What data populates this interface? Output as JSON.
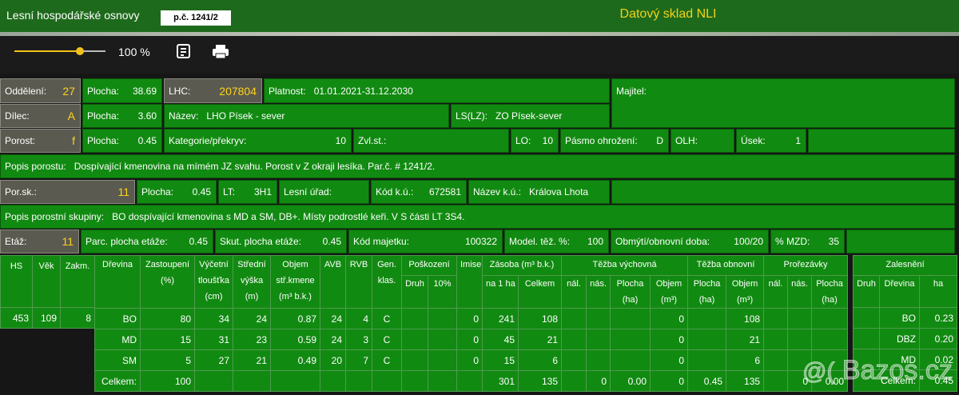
{
  "header": {
    "title": "Lesní hospodářské osnovy",
    "parcel": "p.č. 1241/2",
    "app": "Datový sklad NLI"
  },
  "toolbar": {
    "zoom": "100 %"
  },
  "form": {
    "rows": [
      [
        {
          "label": "Oddělení:",
          "value": "27"
        },
        {
          "label": "Plocha:",
          "value": "38.69"
        },
        {
          "label": "LHC:",
          "value": "207804"
        },
        {
          "label": "Platnost:",
          "value": "01.01.2021-31.12.2030"
        },
        {
          "label": "Majitel:"
        }
      ],
      [
        {
          "label": "Dílec:",
          "value": "A"
        },
        {
          "label": "Plocha:",
          "value": "3.60"
        },
        {
          "label": "Název:",
          "value": "LHO Písek - sever"
        },
        {
          "label": "LS(LZ):",
          "value": "ZO Písek-sever"
        }
      ],
      [
        {
          "label": "Porost:",
          "value": "f"
        },
        {
          "label": "Plocha:",
          "value": "0.45"
        },
        {
          "label": "Kategorie/překryv:",
          "value": "10"
        },
        {
          "label": "Zvl.st.:"
        },
        {
          "label": "LO:",
          "value": "10"
        },
        {
          "label": "Pásmo ohrožení:",
          "value": "D"
        },
        {
          "label": "OLH:"
        },
        {
          "label": "Úsek:",
          "value": "1"
        }
      ],
      [
        {
          "label": "Popis porostu:",
          "value": "Dospívající kmenovina na mímém JZ svahu. Porost v Z okraji lesíka. Par.č. # 1241/2."
        }
      ],
      [
        {
          "label": "Por.sk.:",
          "value": "11"
        },
        {
          "label": "Plocha:",
          "value": "0.45"
        },
        {
          "label": "LT:",
          "value": "3H1"
        },
        {
          "label": "Lesní úřad:"
        },
        {
          "label": "Kód k.ú.:",
          "value": "672581"
        },
        {
          "label": "Název k.ú.:",
          "value": "Králova Lhota"
        }
      ],
      [
        {
          "label": "Popis porostní skupiny:",
          "value": "BO dospívající kmenovina s MD a SM, DB+. Místy podrostlé keři. V S části LT 3S4."
        }
      ],
      [
        {
          "label": "Etáž:",
          "value": "11"
        },
        {
          "label": "Parc. plocha etáže:",
          "value": "0.45"
        },
        {
          "label": "Skut. plocha etáže:",
          "value": "0.45"
        },
        {
          "label": "Kód majetku:",
          "value": "100322"
        },
        {
          "label": "Model. těž. %:",
          "value": "100"
        },
        {
          "label": "Obmýtí/obnovní doba:",
          "value": "100/20"
        },
        {
          "label": "% MZD:",
          "value": "35"
        }
      ]
    ]
  },
  "stand_table": {
    "columns": [
      "HS",
      "Věk",
      "Zakm."
    ],
    "rows": [
      [
        "453",
        "109",
        "8"
      ]
    ]
  },
  "species_table": {
    "header_row1": [
      [
        "Dřevina"
      ],
      [
        "Zastoupení",
        "(%)"
      ],
      [
        "Výčetní",
        "tloušťka",
        "(cm)"
      ],
      [
        "Střední",
        "výška",
        "(m)"
      ],
      [
        "Objem",
        "stř.kmene",
        "(m³ b.k.)"
      ],
      [
        "AVB"
      ],
      [
        "RVB"
      ],
      [
        "Gen.",
        "klas."
      ],
      [
        "Poškození"
      ],
      [
        "Imise"
      ],
      [
        "Zásoba (m³ b.k.)"
      ],
      [
        "Těžba výchovná"
      ],
      [
        "Těžba obnovní"
      ],
      [
        "Prořezávky"
      ]
    ],
    "header_row2": [
      [
        "Druh"
      ],
      [
        "10%"
      ],
      [
        "na 1 ha"
      ],
      [
        "Celkem"
      ],
      [
        "nál."
      ],
      [
        "nás."
      ],
      [
        "Plocha",
        "(ha)"
      ],
      [
        "Objem",
        "(m³)"
      ],
      [
        "Plocha",
        "(ha)"
      ],
      [
        "Objem",
        "(m³)"
      ],
      [
        "nál."
      ],
      [
        "nás."
      ],
      [
        "Plocha",
        "(ha)"
      ]
    ],
    "rows": [
      [
        "BO",
        "80",
        "34",
        "24",
        "0.87",
        "24",
        "4",
        "C",
        null,
        null,
        "0",
        "241",
        "108",
        null,
        null,
        null,
        "0",
        null,
        "108",
        null,
        null,
        null
      ],
      [
        "MD",
        "15",
        "31",
        "23",
        "0.59",
        "24",
        "3",
        "C",
        null,
        null,
        "0",
        "45",
        "21",
        null,
        null,
        null,
        "0",
        null,
        "21",
        null,
        null,
        null
      ],
      [
        "SM",
        "5",
        "27",
        "21",
        "0.49",
        "20",
        "7",
        "C",
        null,
        null,
        "0",
        "15",
        "6",
        null,
        null,
        null,
        "0",
        null,
        "6",
        null,
        null,
        null
      ],
      [
        "Celkem:",
        "100",
        null,
        null,
        null,
        null,
        null,
        null,
        null,
        null,
        null,
        "301",
        "135",
        null,
        "0",
        "0.00",
        "0",
        "0.45",
        "135",
        null,
        "0",
        "0.00"
      ]
    ]
  },
  "zalesneni": {
    "title": "Zalesnění",
    "columns": [
      "Druh",
      "Dřevina",
      "ha"
    ],
    "rows": [
      [
        null,
        "BO",
        "0.23"
      ],
      [
        null,
        "DBZ",
        "0.20"
      ],
      [
        null,
        "MD",
        "0.02"
      ]
    ],
    "total": {
      "label": "Celkem:",
      "value": "0.45"
    }
  },
  "watermark": "Bazos.cz"
}
